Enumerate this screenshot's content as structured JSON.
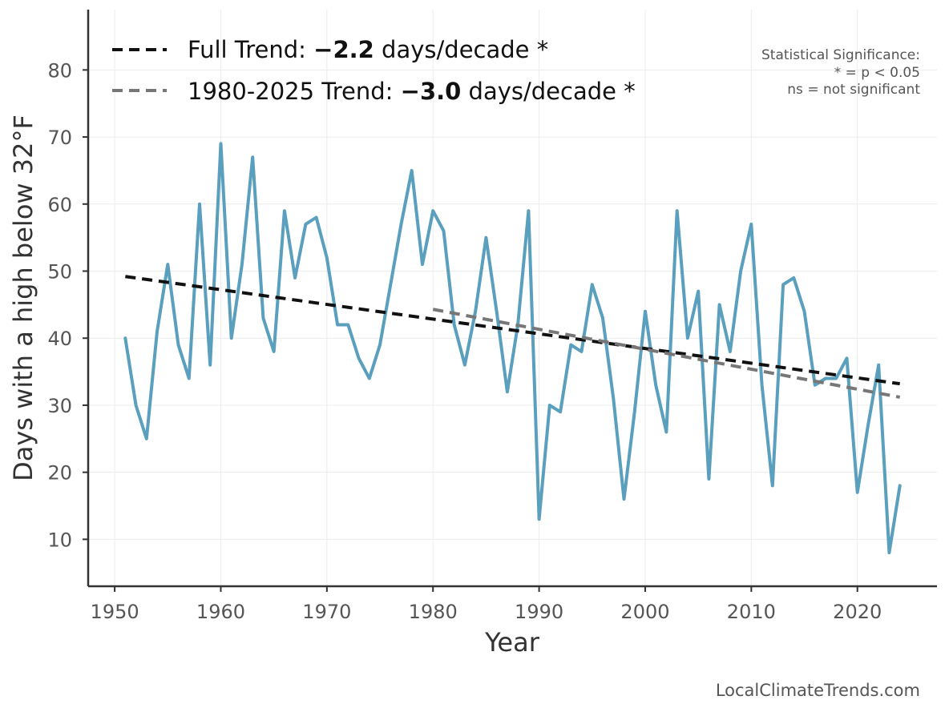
{
  "chart_data": {
    "type": "line",
    "xlabel": "Year",
    "ylabel": "Days with a high below 32°F",
    "xlim": [
      1947.5,
      2027.5
    ],
    "ylim": [
      3,
      89
    ],
    "xticks": [
      1950,
      1960,
      1970,
      1980,
      1990,
      2000,
      2010,
      2020
    ],
    "yticks": [
      10,
      20,
      30,
      40,
      50,
      60,
      70,
      80
    ],
    "grid": true,
    "legend_position": "top-left",
    "series": [
      {
        "color": "#5a9fbd",
        "x": [
          1951,
          1952,
          1953,
          1954,
          1955,
          1956,
          1957,
          1958,
          1959,
          1960,
          1961,
          1962,
          1963,
          1964,
          1965,
          1966,
          1967,
          1968,
          1969,
          1970,
          1971,
          1972,
          1973,
          1974,
          1975,
          1976,
          1977,
          1978,
          1979,
          1980,
          1981,
          1982,
          1983,
          1984,
          1985,
          1986,
          1987,
          1988,
          1989,
          1990,
          1991,
          1992,
          1993,
          1994,
          1995,
          1996,
          1997,
          1998,
          1999,
          2000,
          2001,
          2002,
          2003,
          2004,
          2005,
          2006,
          2007,
          2008,
          2009,
          2010,
          2011,
          2012,
          2013,
          2014,
          2015,
          2016,
          2017,
          2018,
          2019,
          2020,
          2021,
          2022,
          2023,
          2024
        ],
        "y": [
          40,
          30,
          25,
          41,
          51,
          39,
          34,
          60,
          36,
          69,
          40,
          51,
          67,
          43,
          38,
          59,
          49,
          57,
          58,
          52,
          42,
          42,
          37,
          34,
          39,
          48,
          57,
          65,
          51,
          59,
          56,
          42,
          36,
          44,
          55,
          44,
          32,
          42,
          59,
          13,
          30,
          29,
          39,
          38,
          48,
          43,
          31,
          16,
          29,
          44,
          33,
          26,
          59,
          40,
          47,
          19,
          45,
          38,
          50,
          57,
          33,
          18,
          48,
          49,
          44,
          33,
          34,
          34,
          37,
          17,
          27,
          36,
          8,
          18
        ]
      }
    ],
    "trend_lines": [
      {
        "label_prefix": "Full Trend: ",
        "label_value": "−2.2",
        "label_suffix": " days/decade *",
        "color": "#111111",
        "x": [
          1951,
          2024
        ],
        "y": [
          49.2,
          33.2
        ]
      },
      {
        "label_prefix": "1980-2025 Trend: ",
        "label_value": "−3.0",
        "label_suffix": " days/decade *",
        "color": "#777777",
        "x": [
          1980,
          2024
        ],
        "y": [
          44.3,
          31.2
        ]
      }
    ],
    "annotations": {
      "significance_title": "Statistical Significance:",
      "significance_line1": "* = p < 0.05",
      "significance_line2": "ns = not significant",
      "credit": "LocalClimateTrends.com"
    }
  }
}
